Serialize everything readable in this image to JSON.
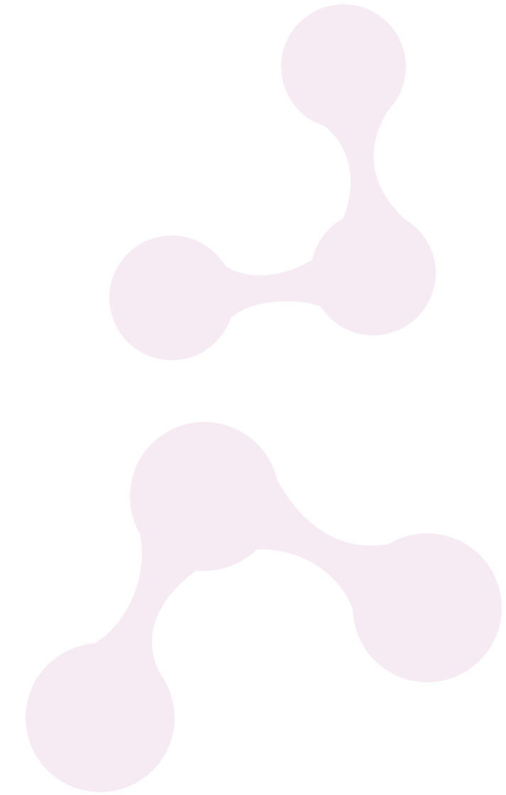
{
  "background_color": "#ffffff",
  "shape_color": "#f7ebf3",
  "graphics": [
    {
      "name": "molecule-graphic-top",
      "description_icon": "molecule-icon"
    },
    {
      "name": "molecule-graphic-bottom",
      "description_icon": "molecule-icon"
    }
  ]
}
